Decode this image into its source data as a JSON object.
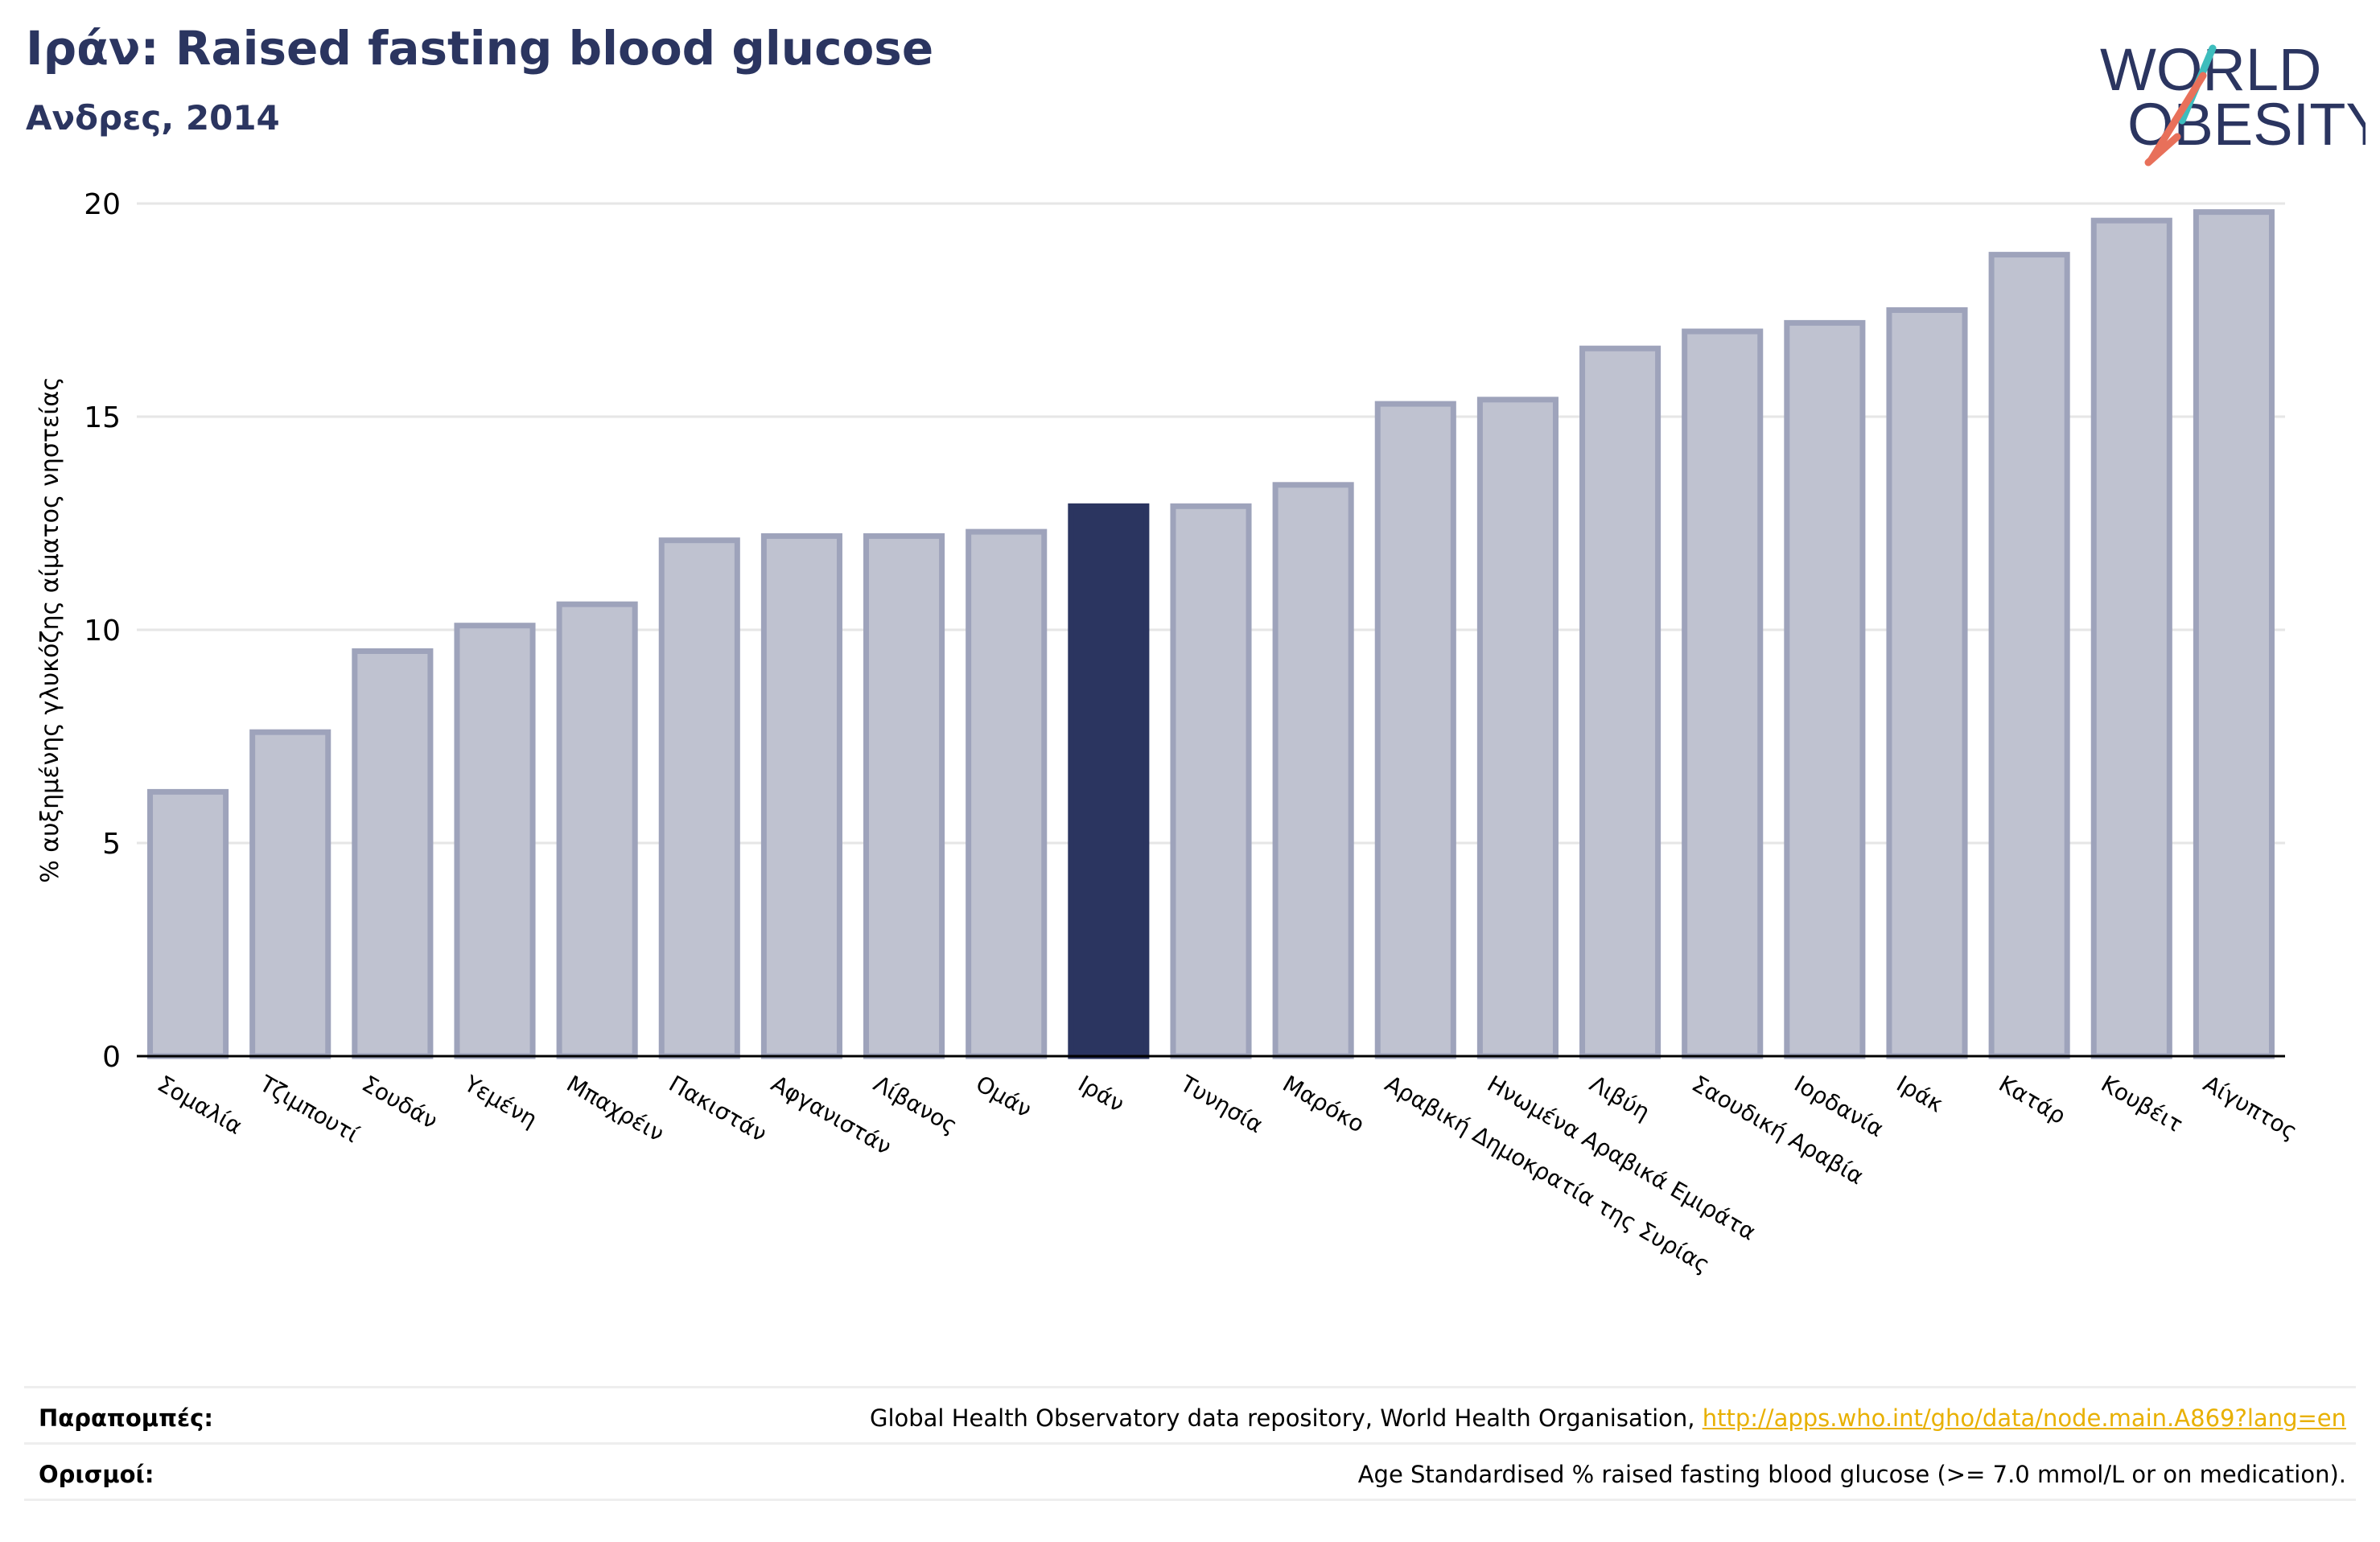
{
  "header": {
    "title": "Ιράν: Raised fasting blood glucose",
    "subtitle": "Ανδρες, 2014",
    "logo_line1": "WORLD",
    "logo_line2": "OBESITY"
  },
  "colors": {
    "primary": "#2b3560",
    "bar_default": "#bfc2d0",
    "bar_default_stroke": "#9ea3bb",
    "bar_highlight": "#2b3560",
    "link": "#e8b000",
    "logo_teal": "#3dbdbd",
    "logo_coral": "#e8705a"
  },
  "chart_data": {
    "type": "bar",
    "title": "Ιράν: Raised fasting blood glucose",
    "subtitle": "Ανδρες, 2014",
    "ylabel": "% αυξημένης γλυκόζης αίματος νηστείας",
    "xlabel": "",
    "ylim": [
      0,
      20
    ],
    "yticks": [
      0,
      5,
      10,
      15,
      20
    ],
    "grid": true,
    "highlight": "Ιράν",
    "categories": [
      "Σομαλία",
      "Τζιμπουτί",
      "Σουδάν",
      "Υεμένη",
      "Μπαχρέιν",
      "Πακιστάν",
      "Αφγανιστάν",
      "Λίβανος",
      "Ομάν",
      "Ιράν",
      "Τυνησία",
      "Μαρόκο",
      "Αραβική Δημοκρατία της Συρίας",
      "Ηνωμένα Αραβικά Εμιράτα",
      "Λιβύη",
      "Σαουδική Αραβία",
      "Ιορδανία",
      "Ιράκ",
      "Κατάρ",
      "Κουβέιτ",
      "Αίγυπτος"
    ],
    "values": [
      6.2,
      7.6,
      9.5,
      10.1,
      10.6,
      12.1,
      12.2,
      12.2,
      12.3,
      12.9,
      12.9,
      13.4,
      15.3,
      15.4,
      16.6,
      17.0,
      17.2,
      17.5,
      18.8,
      19.6,
      19.8
    ]
  },
  "references": {
    "sources_label": "Παραπομπές:",
    "sources_text": "Global Health Observatory data repository, World Health Organisation, ",
    "sources_link": "http://apps.who.int/gho/data/node.main.A869?lang=en",
    "definitions_label": "Ορισμοί:",
    "definitions_text": "Age Standardised % raised fasting blood glucose (>= 7.0 mmol/L or on medication)."
  }
}
